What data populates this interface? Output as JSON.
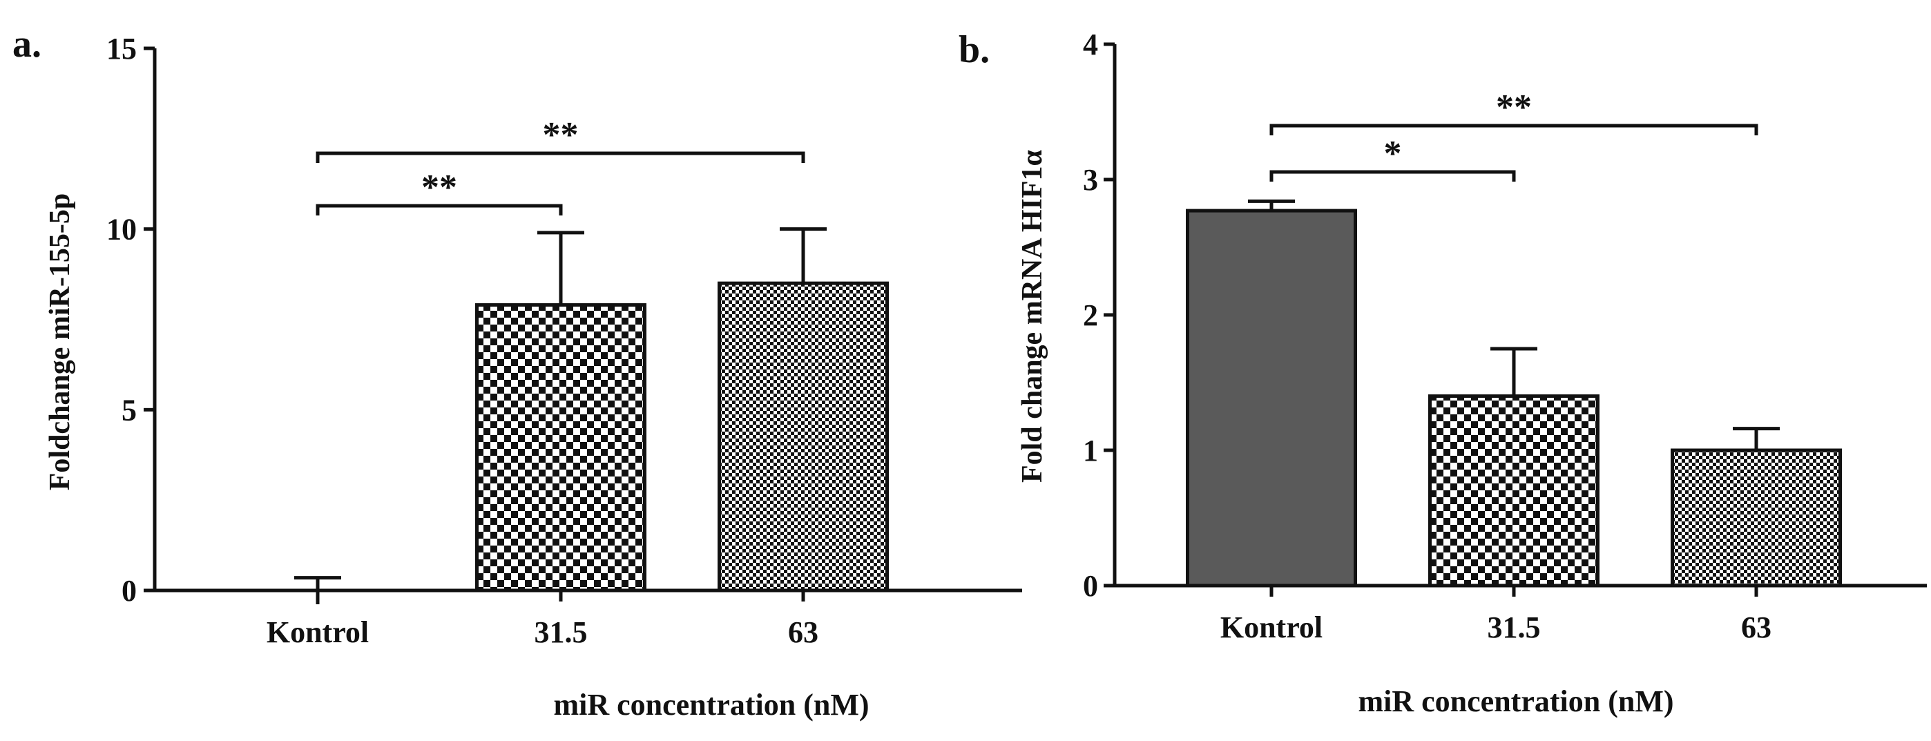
{
  "figure": {
    "colors": {
      "ink": "#111111",
      "solid_bar": "#5a5a5a",
      "background": "#ffffff"
    }
  },
  "chart_data": [
    {
      "panel_label": "a.",
      "type": "bar",
      "title": "",
      "xlabel": "miR concentration (nM)",
      "ylabel": "Foldchange miR-155-5p",
      "ylim": [
        0,
        15
      ],
      "yticks": [
        "0",
        "5",
        "10",
        "15"
      ],
      "categories": [
        "Kontrol",
        "31.5",
        "63"
      ],
      "values": [
        0.0,
        7.9,
        8.5
      ],
      "errors": [
        0.35,
        2.0,
        1.5
      ],
      "fills": [
        "solid",
        "checker-coarse",
        "checker-fine"
      ],
      "significance": [
        {
          "from": 0,
          "to": 1,
          "label": "**"
        },
        {
          "from": 0,
          "to": 2,
          "label": "**"
        }
      ]
    },
    {
      "panel_label": "b.",
      "type": "bar",
      "title": "",
      "xlabel": "miR concentration (nM)",
      "ylabel": "Fold change mRNA HIF1α",
      "ylim": [
        0,
        4
      ],
      "yticks": [
        "0",
        "1",
        "2",
        "3",
        "4"
      ],
      "categories": [
        "Kontrol",
        "31.5",
        "63"
      ],
      "values": [
        2.77,
        1.4,
        1.0
      ],
      "errors": [
        0.07,
        0.35,
        0.16
      ],
      "fills": [
        "solid",
        "checker-coarse",
        "checker-fine"
      ],
      "significance": [
        {
          "from": 0,
          "to": 1,
          "label": "*"
        },
        {
          "from": 0,
          "to": 2,
          "label": "**"
        }
      ]
    }
  ]
}
